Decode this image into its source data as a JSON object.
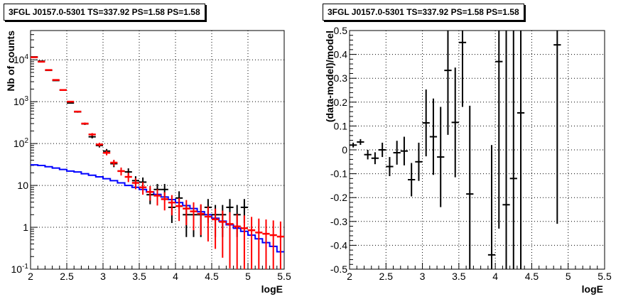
{
  "chart_data": [
    {
      "type": "line",
      "title": "3FGL J0157.0-5301 TS=337.92 PS=1.58 PS=1.58",
      "xlabel": "logE",
      "ylabel": "Nb of counts",
      "xlim": [
        2,
        5.5
      ],
      "ylim": [
        0.1,
        50000
      ],
      "yscale": "log",
      "grid": true,
      "x_ticks": [
        "2",
        "2.5",
        "3",
        "3.5",
        "4",
        "4.5",
        "5",
        "5.5"
      ],
      "y_ticks": [
        "10^{-1}",
        "1",
        "10",
        "10^{2}",
        "10^{3}",
        "10^{4}"
      ],
      "series": [
        {
          "color": "#ff0000",
          "x": [
            2.05,
            2.15,
            2.25,
            2.35,
            2.45,
            2.55,
            2.65,
            2.75,
            2.85,
            2.95,
            3.05,
            3.15,
            3.25,
            3.35,
            3.45,
            3.55,
            3.65,
            3.75,
            3.85,
            3.95,
            4.05,
            4.15,
            4.25,
            4.35,
            4.45,
            4.55,
            4.65,
            4.75,
            4.85,
            4.95,
            5.05,
            5.15,
            5.25,
            5.35,
            5.45
          ],
          "y": [
            11500,
            9000,
            5700,
            3300,
            1900,
            1000,
            580,
            300,
            165,
            95,
            60,
            35,
            22,
            16,
            11.5,
            9,
            7,
            5.7,
            4.7,
            3.9,
            3.2,
            2.8,
            2.4,
            2.1,
            1.8,
            1.55,
            1.35,
            1.2,
            1.05,
            0.95,
            0.85,
            0.75,
            0.7,
            0.65,
            0.6
          ]
        },
        {
          "color": "#0000ff",
          "x": [
            2.05,
            2.15,
            2.25,
            2.35,
            2.45,
            2.55,
            2.65,
            2.75,
            2.85,
            2.95,
            3.05,
            3.15,
            3.25,
            3.35,
            3.45,
            3.55,
            3.65,
            3.75,
            3.85,
            3.95,
            4.05,
            4.15,
            4.25,
            4.35,
            4.45,
            4.55,
            4.65,
            4.75,
            4.85,
            4.95,
            5.05,
            5.15,
            5.25,
            5.35,
            5.45
          ],
          "y": [
            31,
            30,
            28,
            26,
            24,
            22,
            21,
            19,
            17.5,
            16,
            14.5,
            13,
            11.5,
            10,
            9,
            8,
            7,
            6.1,
            5.3,
            4.6,
            3.9,
            3.3,
            2.8,
            2.35,
            2.0,
            1.65,
            1.4,
            1.15,
            0.95,
            0.8,
            0.65,
            0.53,
            0.43,
            0.35,
            0.26
          ]
        },
        {
          "color": "#000000",
          "x": [
            2.05,
            2.15,
            2.25,
            2.35,
            2.45,
            2.55,
            2.65,
            2.75,
            2.85,
            2.95,
            3.05,
            3.15,
            3.25,
            3.35,
            3.45,
            3.55,
            3.65,
            3.75,
            3.85,
            3.95,
            4.05,
            4.15,
            4.25,
            4.35,
            4.45,
            4.55,
            4.65,
            4.75,
            4.85,
            4.95
          ],
          "y": [
            11750,
            9300,
            5600,
            3200,
            1900,
            930,
            570,
            295,
            145,
            90,
            66,
            33,
            22,
            21,
            13,
            12,
            6,
            8,
            8,
            3,
            5,
            2,
            2,
            2,
            3,
            2,
            2,
            3,
            2,
            3
          ]
        }
      ]
    },
    {
      "type": "scatter",
      "title": "3FGL J0157.0-5301 TS=337.92 PS=1.58 PS=1.58",
      "xlabel": "logE",
      "ylabel": "(data-model)/model",
      "xlim": [
        2,
        5.5
      ],
      "ylim": [
        -0.5,
        0.5
      ],
      "grid": true,
      "x_ticks": [
        "2",
        "2.5",
        "3",
        "3.5",
        "4",
        "4.5",
        "5",
        "5.5"
      ],
      "y_ticks": [
        "-0.5",
        "-0.4",
        "-0.3",
        "-0.2",
        "-0.1",
        "0",
        "0.1",
        "0.2",
        "0.3",
        "0.4",
        "0.5"
      ],
      "series": [
        {
          "color": "#000000",
          "x": [
            2.05,
            2.15,
            2.25,
            2.35,
            2.45,
            2.55,
            2.65,
            2.75,
            2.85,
            2.95,
            3.05,
            3.15,
            3.25,
            3.35,
            3.45,
            3.55,
            3.65,
            3.95,
            4.05,
            4.15,
            4.25,
            4.35,
            4.85
          ],
          "y": [
            0.02,
            0.033,
            -0.02,
            -0.035,
            0.0,
            -0.07,
            -0.012,
            -0.005,
            -0.125,
            -0.05,
            0.113,
            0.055,
            -0.03,
            0.333,
            0.115,
            0.45,
            -0.185,
            -0.44,
            0.37,
            -0.23,
            -0.12,
            0.155,
            0.44
          ],
          "yerr": [
            0.01,
            0.012,
            0.02,
            0.025,
            0.03,
            0.04,
            0.05,
            0.06,
            0.07,
            0.08,
            0.14,
            0.16,
            0.21,
            0.27,
            0.23,
            0.27,
            0.37,
            0.46,
            0.7,
            0.75,
            0.75,
            0.75,
            0.75
          ]
        }
      ]
    }
  ]
}
